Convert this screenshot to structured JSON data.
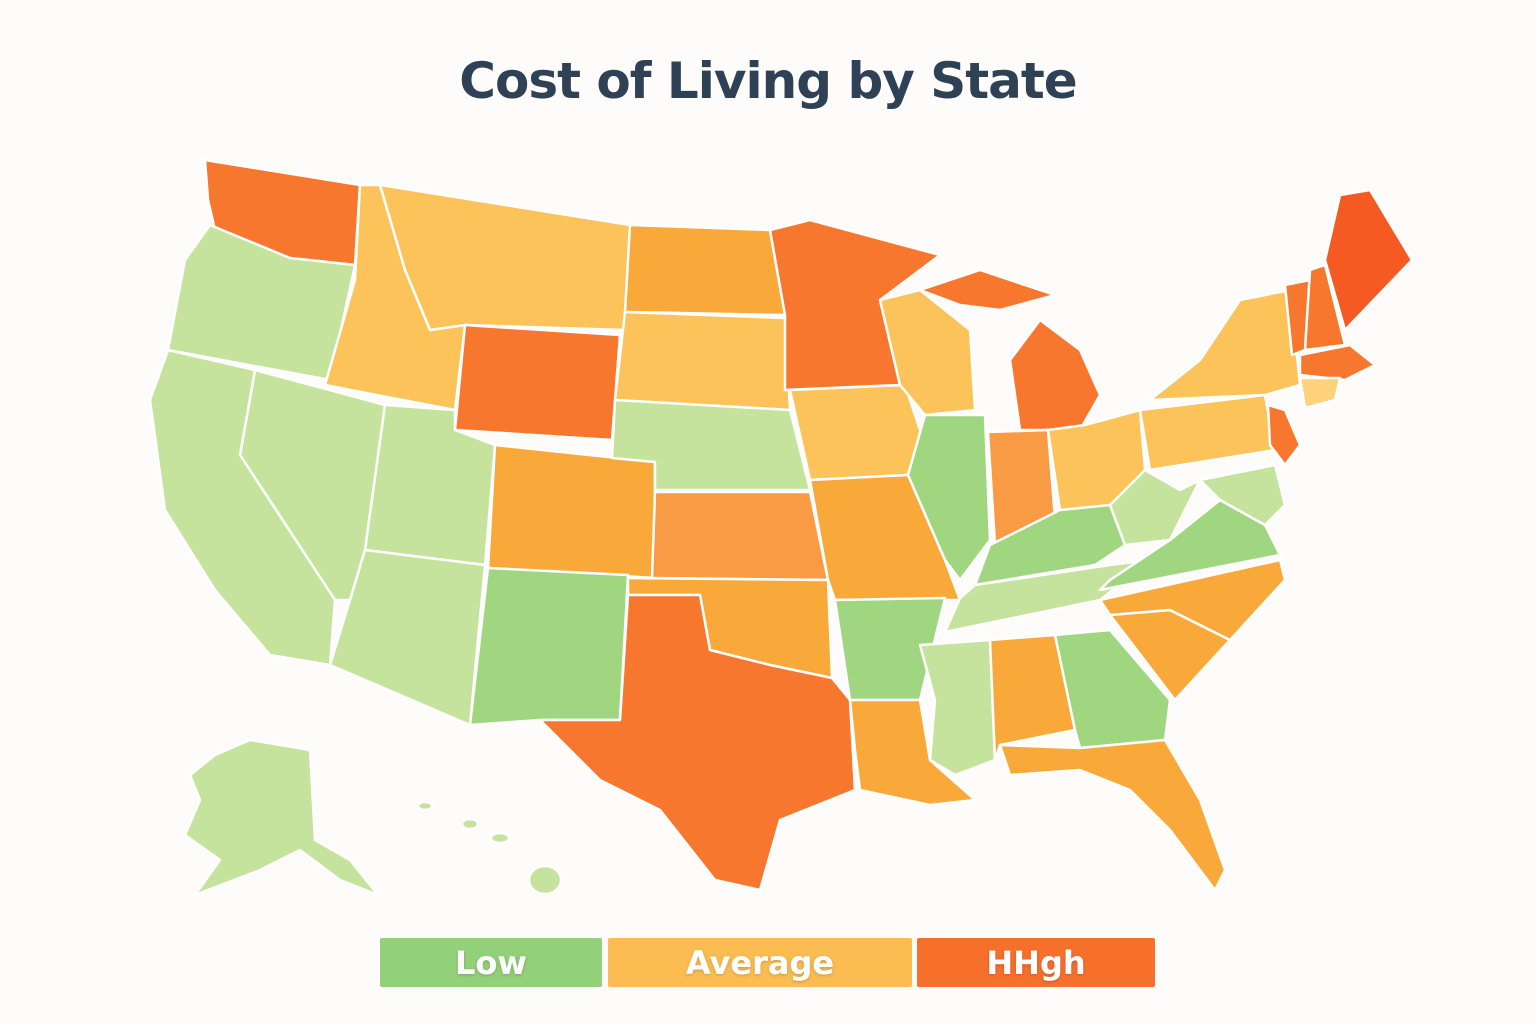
{
  "title": "Cost of Living by State",
  "legend": {
    "items": [
      {
        "label": "Low",
        "color": "#93d07a"
      },
      {
        "label": "Average",
        "color": "#fbbd52"
      },
      {
        "label": "HHgh",
        "color": "#f7702b"
      }
    ]
  }
}
